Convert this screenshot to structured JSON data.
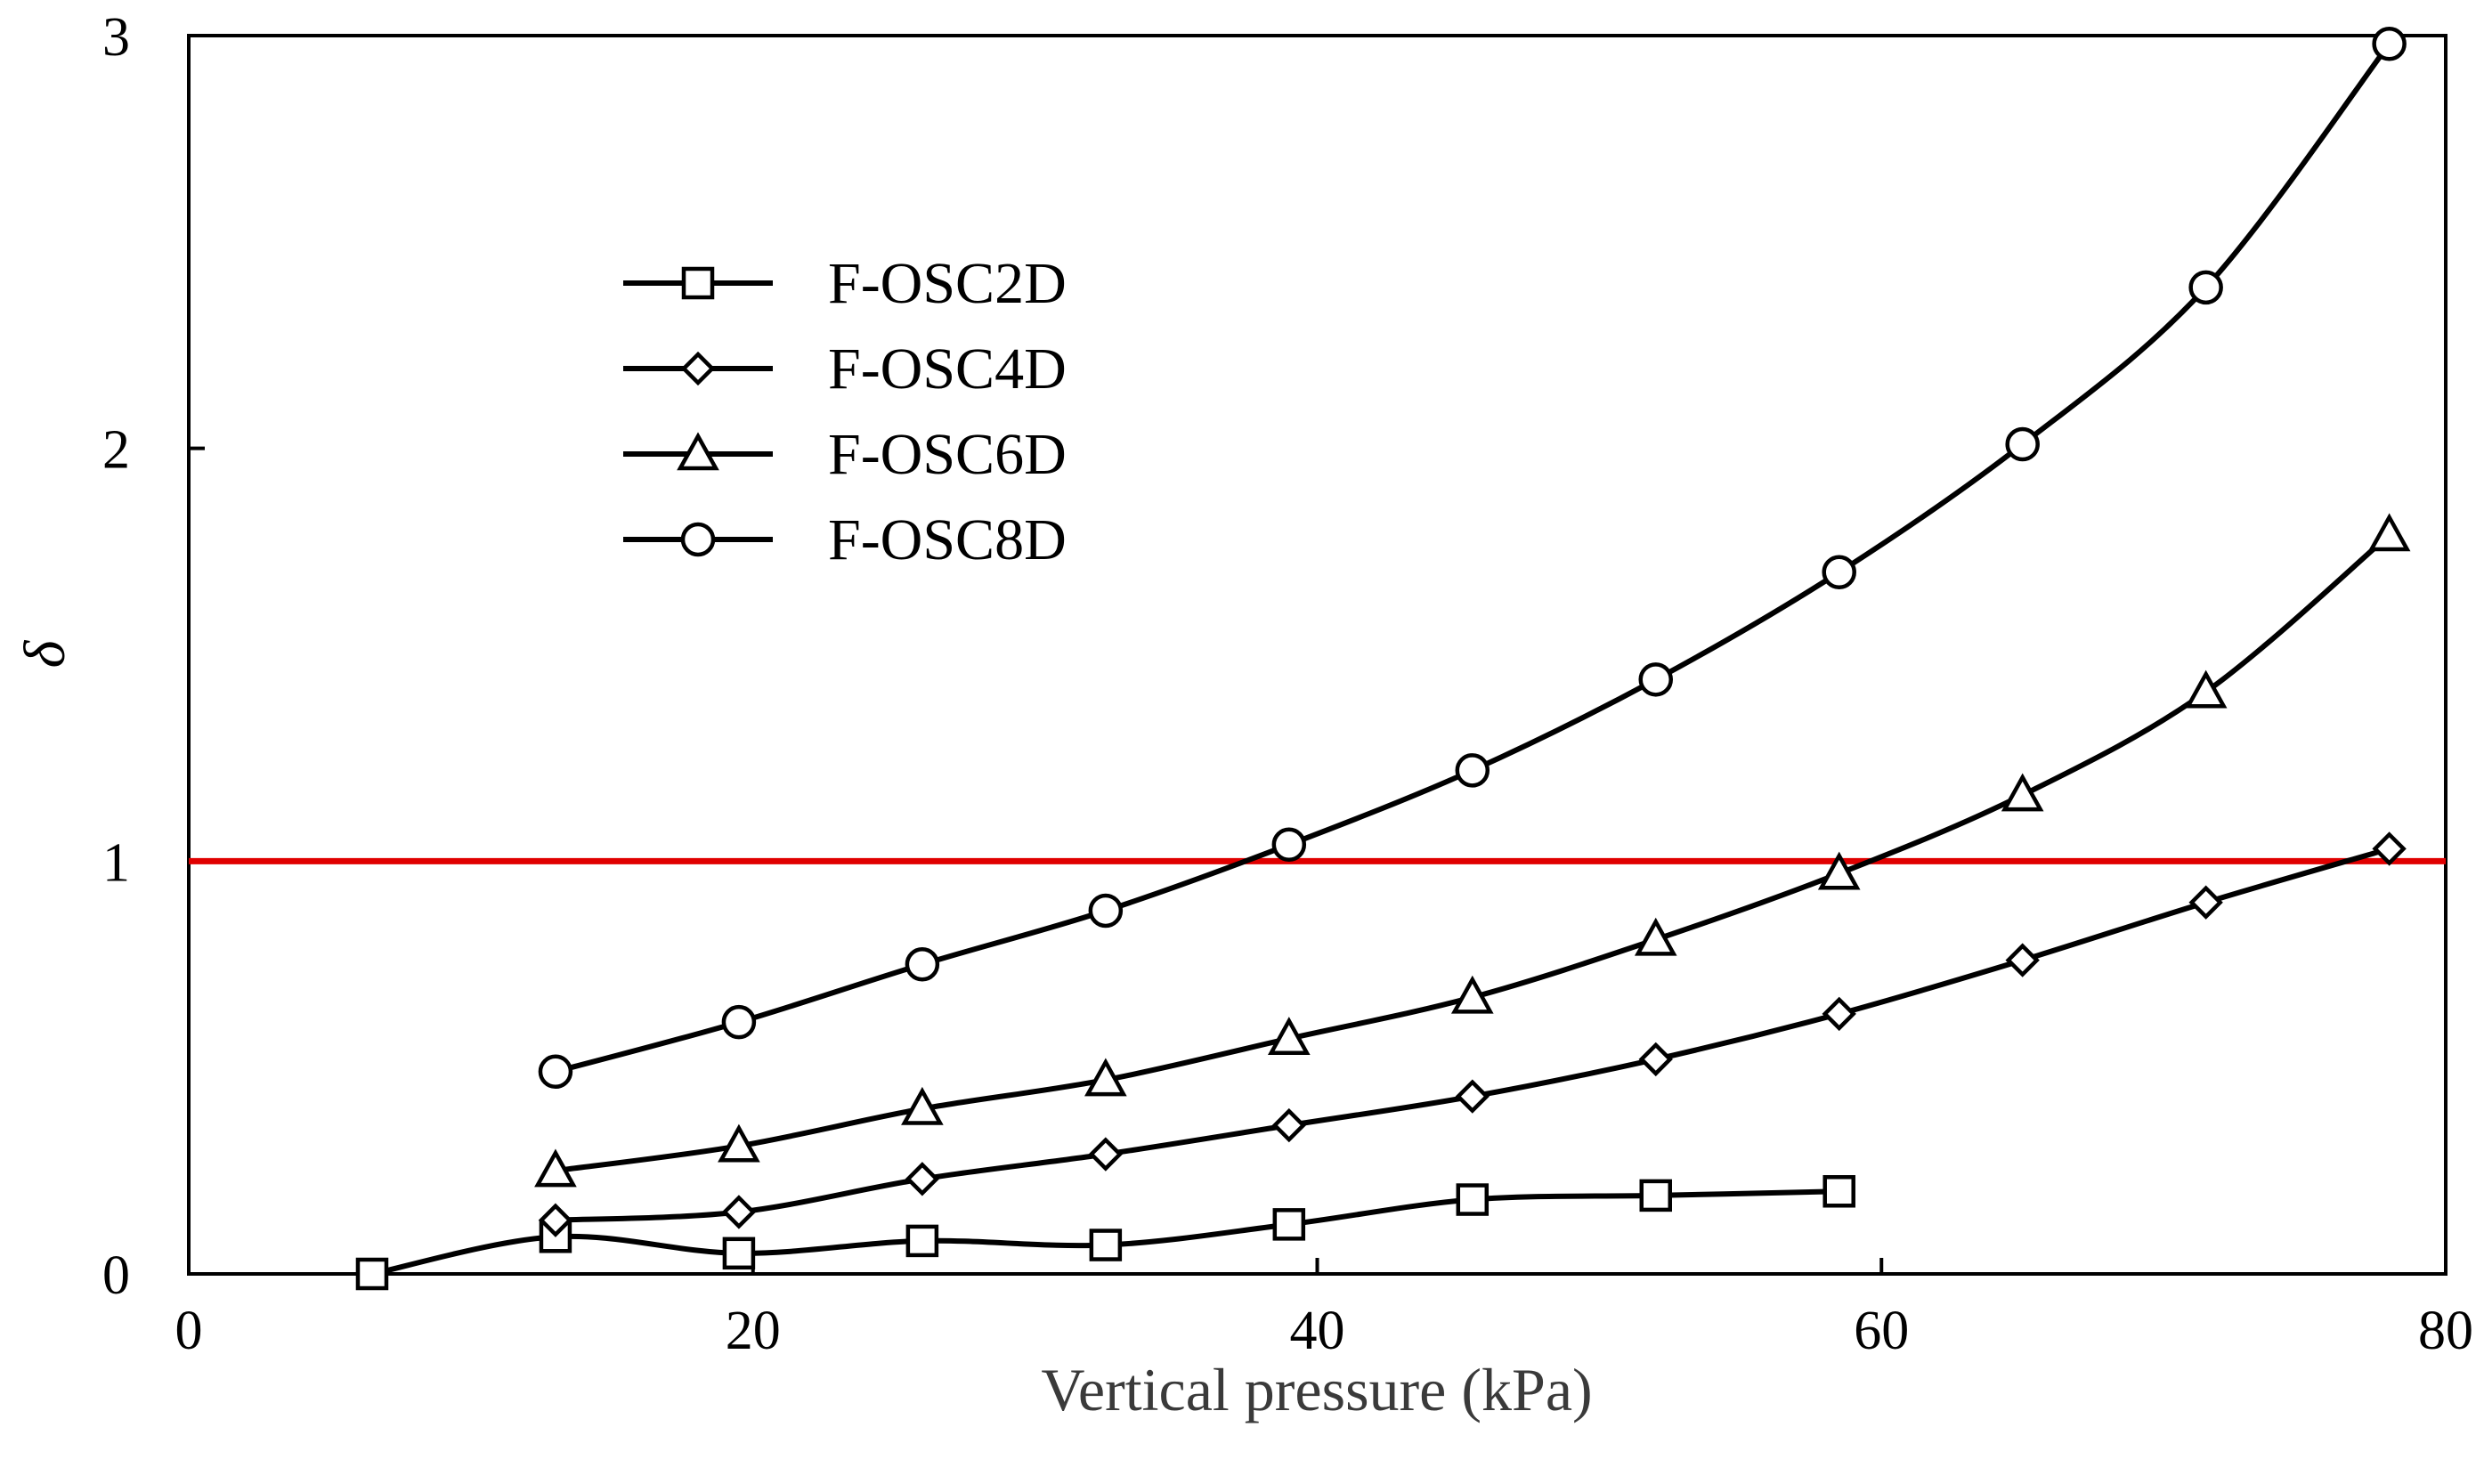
{
  "chart_data": {
    "type": "line",
    "title": "",
    "xlabel": "Vertical pressure (kPa)",
    "ylabel": "δ",
    "xlim": [
      0,
      80
    ],
    "ylim": [
      0,
      3
    ],
    "xticks": [
      0,
      20,
      40,
      60,
      80
    ],
    "yticks": [
      0,
      1,
      2,
      3
    ],
    "xtick_labels": [
      "0",
      "20",
      "40",
      "60",
      "80"
    ],
    "ytick_labels": [
      "0",
      "1",
      "2",
      "3"
    ],
    "grid": false,
    "legend_position": "upper-left",
    "reference_line": {
      "y": 1,
      "color": "#e00000"
    },
    "series": [
      {
        "name": "F-OSC2D",
        "marker": "square",
        "x": [
          6.5,
          13,
          19.5,
          26,
          32.5,
          39,
          45.5,
          52,
          58.5
        ],
        "y": [
          0.0,
          0.09,
          0.05,
          0.08,
          0.07,
          0.12,
          0.18,
          0.19,
          0.2
        ]
      },
      {
        "name": "F-OSC4D",
        "marker": "diamond",
        "x": [
          13,
          19.5,
          26,
          32.5,
          39,
          45.5,
          52,
          58.5,
          65,
          71.5,
          78
        ],
        "y": [
          0.13,
          0.15,
          0.23,
          0.29,
          0.36,
          0.43,
          0.52,
          0.63,
          0.76,
          0.9,
          1.03
        ]
      },
      {
        "name": "F-OSC6D",
        "marker": "triangle",
        "x": [
          13,
          19.5,
          26,
          32.5,
          39,
          45.5,
          52,
          58.5,
          65,
          71.5,
          78
        ],
        "y": [
          0.25,
          0.31,
          0.4,
          0.47,
          0.57,
          0.67,
          0.81,
          0.97,
          1.16,
          1.41,
          1.79
        ]
      },
      {
        "name": "F-OSC8D",
        "marker": "circle",
        "x": [
          13,
          19.5,
          26,
          32.5,
          39,
          45.5,
          52,
          58.5,
          65,
          71.5,
          78
        ],
        "y": [
          0.49,
          0.61,
          0.75,
          0.88,
          1.04,
          1.22,
          1.44,
          1.7,
          2.01,
          2.39,
          2.98
        ]
      }
    ]
  },
  "colors": {
    "line": "#000000",
    "marker_fill": "#ffffff",
    "reference": "#e00000"
  }
}
